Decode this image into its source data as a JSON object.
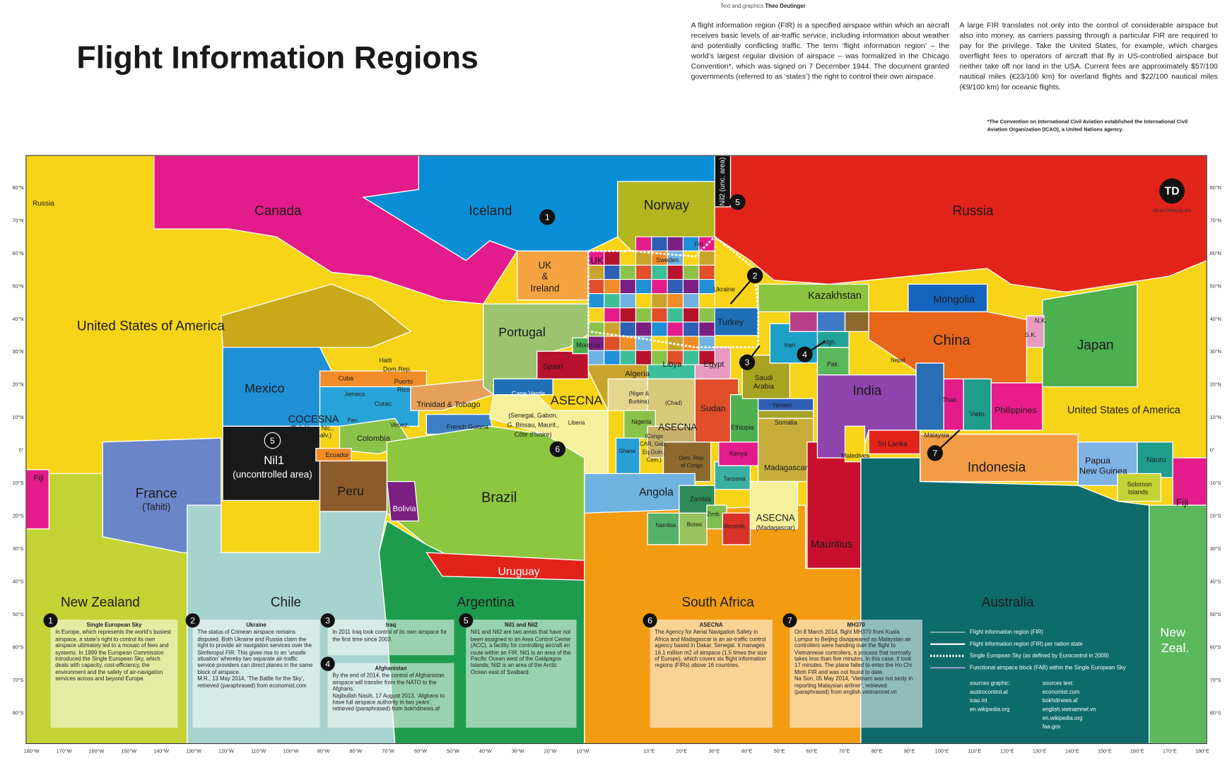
{
  "header": {
    "credit_label": "Text and graphics",
    "credit_name": "Theo Deutinger",
    "title": "Flight Information Regions",
    "intro_left": "A flight information region (FIR) is a specified airspace within which an aircraft receives basic levels of air-traffic service, including information about weather and potentially conflicting traffic. The term ‘flight information region’ – the world’s largest regular division of airspace – was formalized in the Chicago Convention*, which was signed on 7 December 1944. The document granted governments (referred to as ‘states’) the right to control their own airspace.",
    "intro_right": "A large FIR translates not only into the control of considerable airspace but also into money, as carriers passing through a particular FIR are required to pay for the privilege. Take the United States, for example, which charges overflight fees to operators of aircraft that fly in US-controlled airspace but neither take off nor land in the USA. Current fees are approximately $57/100 nautical miles (€23/100 km) for overland flights and $22/100 nautical miles (€9/100 km) for oceanic flights.",
    "footnote": "*The Convention on International Civil Aviation established the International Civil Aviation Organization (ICAO), a United Nations agency."
  },
  "map": {
    "logo": "TD",
    "website": "td-architects.eu",
    "nil2_label": "Nil2 (unc. area)",
    "regions": [
      "Russia",
      "Canada",
      "Iceland",
      "Norway",
      "Russia",
      "United States of America",
      "UK",
      "&",
      "Ireland",
      "UK",
      "Portugal",
      "Spain",
      "Morocco",
      "Algeria",
      "Libya",
      "Egypt",
      "Turkey",
      "Ukraine",
      "Sweden",
      "Fin.",
      "Kazakhstan",
      "Mongolia",
      "China",
      "Japan",
      "N.K.",
      "S.K.",
      "Iran",
      "Afgh.",
      "Pak.",
      "Saudi",
      "Arabia",
      "Yemen",
      "India",
      "Nepal",
      "Sri Lanka",
      "Maledives",
      "Thail.",
      "Vietn.",
      "Malaysia",
      "Philippines",
      "United States of America",
      "Indonesia",
      "Papua",
      "New Guinea",
      "Nauru",
      "Solomon",
      "Islands",
      "Fiji",
      "Fiji",
      "Mexico",
      "Cuba",
      "Jamaica",
      "Haiti",
      "Dom.Rep.",
      "Puerto",
      "Rico",
      "Curac.",
      "Venez.",
      "Trinidad & Tobago",
      "French Guiana",
      "Colombia",
      "COCESNA",
      "(Bel.,Hon., Nic.,",
      "C.R., El Salv.)",
      "Pan.",
      "Ecuador",
      "Nil1",
      "(uncontrolled area)",
      "France",
      "(Tahiti)",
      "Peru",
      "Bolivia",
      "Brazil",
      "Uruguay",
      "Cape Verde",
      "ASECNA",
      "(Senegal, Gabon,",
      "G. Bissau, Maurit.,",
      "Côte d'Ivoire)",
      "Liberia",
      "(Niger &",
      "Burkina)",
      "(Chad)",
      "Nigeria",
      "ASECNA",
      "(Congo",
      "CAR, Gab.,",
      "Eq.Guin.,",
      "Cam.)",
      "Ghana",
      "Dem. Rep.",
      "of Congo",
      "Sudan",
      "Ethiopia",
      "Somalia",
      "Kenya",
      "Tanzania",
      "Angola",
      "Zambia",
      "Namibia",
      "Botsw.",
      "Zimb.",
      "Mozamb.",
      "Madagascar",
      "ASECNA",
      "(Madagascar)",
      "Mauritius",
      "New Zealand",
      "Chile",
      "Argentina",
      "South Africa",
      "Australia",
      "New",
      "Zeal."
    ],
    "lat_labels": [
      "80°N",
      "70°N",
      "60°N",
      "50°N",
      "40°N",
      "30°N",
      "20°N",
      "10°N",
      "0°",
      "10°S",
      "20°S",
      "30°S",
      "40°S",
      "50°S",
      "60°S",
      "70°S",
      "80°S"
    ],
    "lon_west_labels": [
      "180°W",
      "170°W",
      "160°W",
      "150°W",
      "140°W",
      "130°W",
      "120°W",
      "110°W",
      "100°W",
      "90°W",
      "80°W",
      "70°W",
      "60°W",
      "50°W",
      "40°W",
      "30°W",
      "20°W",
      "10°W"
    ],
    "lon_east_labels": [
      "10°E",
      "20°E",
      "30°E",
      "40°E",
      "50°E",
      "60°E",
      "70°E",
      "80°E",
      "90°E",
      "100°E",
      "110°E",
      "120°E",
      "130°E",
      "140°E",
      "150°E",
      "160°E",
      "170°E",
      "180°E"
    ]
  },
  "notes": [
    {
      "number": "1",
      "title": "Single European Sky",
      "text": "In Europe, which represents the world’s busiest airspace, a state’s right to control its own airspace ultimately led to a mosaic of fees and systems. In 1999 the European Commission introduced the Single European Sky, which deals with capacity, cost-efficiency, the environment and the safety of air-navigation services across and beyond Europe."
    },
    {
      "number": "2",
      "title": "Ukraine",
      "text": "The status of Crimean airspace remains disputed. Both Ukraine and Russia claim the right to provide air navigation services over the Simferopol FIR. This gives rise to an ‘unsafe situation’ whereby two separate air-traffic service providers can direct planes in the same block of airspace.",
      "source": "M.R., 13 May 2014, ‘The Battle for the Sky’, retrieved (paraphrased) from economist.com"
    },
    {
      "number": "3",
      "title": "Iraq",
      "text": "In 2011 Iraq took control of its own airspace for the first time since 2003."
    },
    {
      "number": "4",
      "title": "Afghanistan",
      "text": "By the end of 2014, the control of Afghanistan airspace will transfer from the NATO to the Afghans.",
      "source": "Najibullah Nasih, 17 August 2013, ‘Afghans to have full airspace authority in two years’, retrieved (paraphrased) from bokhdinews.af"
    },
    {
      "number": "5",
      "title": "Nil1 and Nil2",
      "text": "Nil1 and Nil2 are two areas that have not been assigned to an Area Control Center (ACC), a facility for controlling aircraft en route within an FIR. Nil1 is an area of the Pacific Ocean west of the Galápagos Islands; Nil2 is an area of the Arctic Ocean east of Svalbard."
    },
    {
      "number": "6",
      "title": "ASECNA",
      "text": "The Agency for Aerial Navigation Safety in Africa and Madagascar is an air-traffic control agency based in Dakar, Senegal. It manages 16.1 million m2 of airspace (1.5 times the size of Europe), which covers six flight information regions (FIRs) above 16 countries."
    },
    {
      "number": "7",
      "title": "MH370",
      "text": "On 8 March 2014, flight MH370 from Kuala Lumpur to Beijing disappeared as Malaysian air controllers were handing over the flight to Vietnamese controllers, a process that normally takes less than five minutes. In this case, it took 17 minutes. The plane failed to enter the Ho Chi Minh FIR and was not found to date.",
      "source": "Na Son, 05 May 2014, ‘Vietnam was not tardy in reporting Malaysian airliner’, retrieved (paraphrased) from english.vietnamnet.vn"
    }
  ],
  "legend": [
    "Flight information region (FIR)",
    "Flight information region (FIR) per nation state",
    "Single European Sky (as defined by Eurocontrol in 2009)",
    "Functional airspace block (FAB) within the Single European Sky"
  ],
  "sources": {
    "graphic_title": "sources graphic:",
    "graphic": [
      "austrocontrol.at",
      "icao.int",
      "en.wikipedia.org"
    ],
    "text_title": "sources text:",
    "text": [
      "economist.com",
      "bokhdinews.af",
      "english.vietnamnet.vn",
      "en.wikipedia.org",
      "faa.gov"
    ]
  }
}
